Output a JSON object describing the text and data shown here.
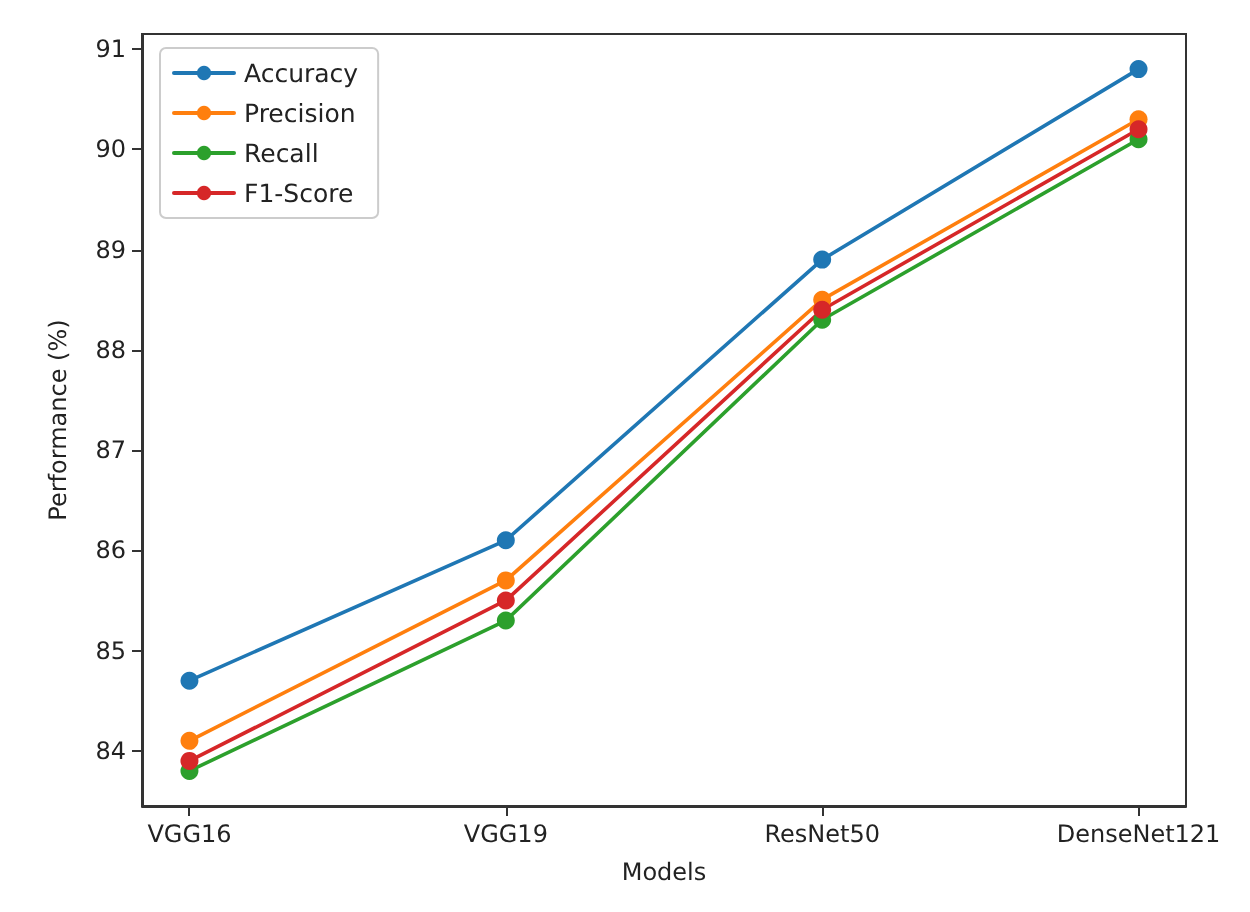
{
  "chart_data": {
    "type": "line",
    "xlabel": "Models",
    "ylabel": "Performance (%)",
    "categories": [
      "VGG16",
      "VGG19",
      "ResNet50",
      "DenseNet121"
    ],
    "series": [
      {
        "name": "Accuracy",
        "color": "#1f77b4",
        "values": [
          84.7,
          86.1,
          88.9,
          90.8
        ]
      },
      {
        "name": "Precision",
        "color": "#ff7f0e",
        "values": [
          84.1,
          85.7,
          88.5,
          90.3
        ]
      },
      {
        "name": "Recall",
        "color": "#2ca02c",
        "values": [
          83.8,
          85.3,
          88.3,
          90.1
        ]
      },
      {
        "name": "F1-Score",
        "color": "#d62728",
        "values": [
          83.9,
          85.5,
          88.4,
          90.2
        ]
      }
    ],
    "ylim": [
      83.45,
      91.15
    ],
    "yticks": [
      84,
      85,
      86,
      87,
      88,
      89,
      90,
      91
    ],
    "grid": false,
    "legend": "top left",
    "marker": "circle",
    "line_style": "solid"
  }
}
